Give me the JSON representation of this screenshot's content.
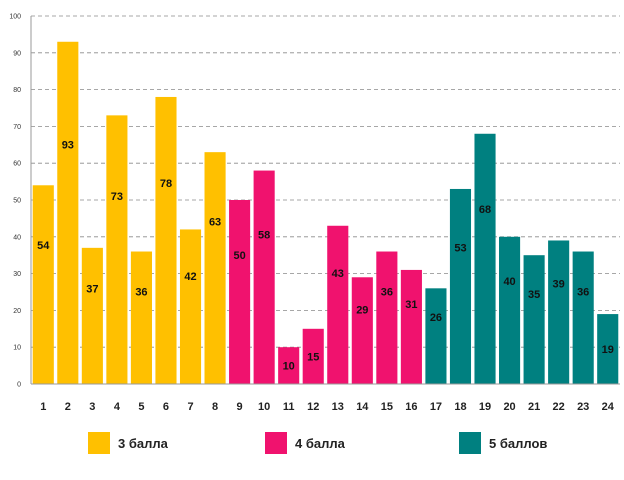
{
  "chart_data": {
    "type": "bar",
    "categories": [
      "1",
      "2",
      "3",
      "4",
      "5",
      "6",
      "7",
      "8",
      "9",
      "10",
      "11",
      "12",
      "13",
      "14",
      "15",
      "16",
      "17",
      "18",
      "19",
      "20",
      "21",
      "22",
      "23",
      "24"
    ],
    "values": [
      54,
      93,
      37,
      73,
      36,
      78,
      42,
      63,
      50,
      58,
      10,
      15,
      43,
      29,
      36,
      31,
      26,
      53,
      68,
      40,
      35,
      39,
      36,
      19
    ],
    "groups": [
      0,
      0,
      0,
      0,
      0,
      0,
      0,
      0,
      1,
      1,
      1,
      1,
      1,
      1,
      1,
      1,
      2,
      2,
      2,
      2,
      2,
      2,
      2,
      2
    ],
    "series": [
      {
        "name": "3 балла",
        "color": "#FFC000"
      },
      {
        "name": "4 балла",
        "color": "#F0126E"
      },
      {
        "name": "5 баллов",
        "color": "#008080"
      }
    ],
    "ylim": [
      0,
      100
    ],
    "yticks": [
      0,
      10,
      20,
      30,
      40,
      50,
      60,
      70,
      80,
      90,
      100
    ],
    "grid": true,
    "legend_position": "bottom",
    "title": "",
    "xlabel": "",
    "ylabel": ""
  }
}
